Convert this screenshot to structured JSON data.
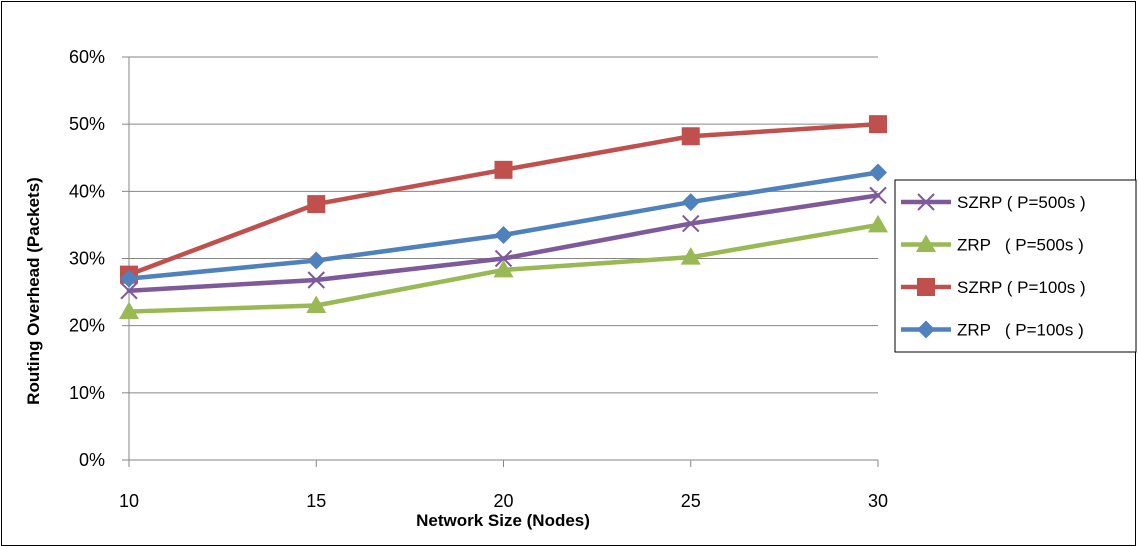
{
  "chart_data": {
    "type": "line",
    "title": "",
    "xlabel": "Network Size (Nodes)",
    "ylabel": "Routing Overhead (Packets)",
    "x": [
      10,
      15,
      20,
      25,
      30
    ],
    "x_tick_labels": [
      "10",
      "15",
      "20",
      "25",
      "30"
    ],
    "ylim": [
      0,
      60
    ],
    "y_ticks": [
      0,
      10,
      20,
      30,
      40,
      50,
      60
    ],
    "y_tick_labels": [
      "0%",
      "10%",
      "20%",
      "30%",
      "40%",
      "50%",
      "60%"
    ],
    "grid": "horizontal",
    "legend_position": "right",
    "series": [
      {
        "name": "SZRP ( P=500s )",
        "color": "#7e5a9b",
        "marker": "x",
        "values": [
          25.2,
          26.8,
          30.0,
          35.2,
          39.4
        ]
      },
      {
        "name": "ZRP   ( P=500s )",
        "color": "#98b954",
        "marker": "triangle",
        "values": [
          22.1,
          23.0,
          28.3,
          30.2,
          35.0
        ]
      },
      {
        "name": "SZRP ( P=100s )",
        "color": "#c0504d",
        "marker": "square",
        "values": [
          27.6,
          38.1,
          43.2,
          48.2,
          50.0
        ]
      },
      {
        "name": "ZRP   ( P=100s )",
        "color": "#4f81bd",
        "marker": "diamond",
        "values": [
          27.0,
          29.7,
          33.5,
          38.4,
          42.8
        ]
      }
    ]
  }
}
